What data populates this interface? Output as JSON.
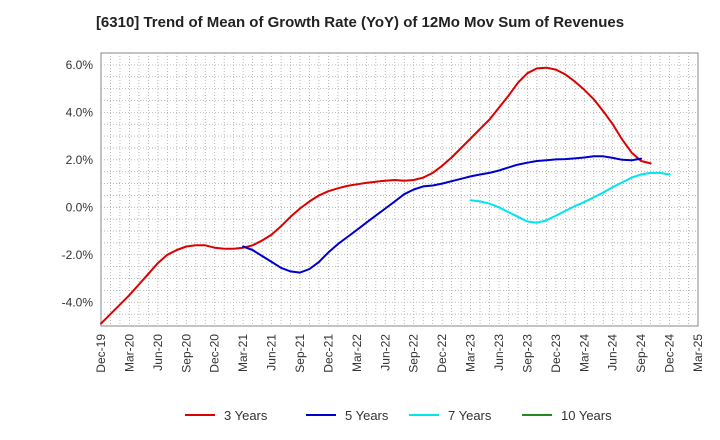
{
  "chart_data": {
    "type": "line",
    "title": "[6310]  Trend of Mean of Growth Rate (YoY) of 12Mo Mov Sum of Revenues",
    "xlabel": "",
    "ylabel": "",
    "x_ticks": [
      "Dec-19",
      "Mar-20",
      "Jun-20",
      "Sep-20",
      "Dec-20",
      "Mar-21",
      "Jun-21",
      "Sep-21",
      "Dec-21",
      "Mar-22",
      "Jun-22",
      "Sep-22",
      "Dec-22",
      "Mar-23",
      "Jun-23",
      "Sep-23",
      "Dec-23",
      "Mar-24",
      "Jun-24",
      "Sep-24",
      "Dec-24",
      "Mar-25"
    ],
    "y_ticks": [
      6.0,
      4.0,
      2.0,
      0.0,
      -2.0,
      -4.0
    ],
    "y_tick_labels": [
      "6.0%",
      "4.0%",
      "2.0%",
      "0.0%",
      "-2.0%",
      "-4.0%"
    ],
    "ylim": [
      -5.0,
      6.5
    ],
    "x_index_range": [
      0,
      63
    ],
    "grid": true,
    "series": [
      {
        "name": "3 Years",
        "color": "#dd0000",
        "start_index": 0,
        "values": [
          -4.9,
          -4.5,
          -4.1,
          -3.7,
          -3.25,
          -2.8,
          -2.35,
          -2.0,
          -1.8,
          -1.65,
          -1.6,
          -1.6,
          -1.7,
          -1.75,
          -1.75,
          -1.7,
          -1.6,
          -1.4,
          -1.15,
          -0.8,
          -0.4,
          -0.05,
          0.25,
          0.5,
          0.68,
          0.8,
          0.9,
          0.97,
          1.03,
          1.08,
          1.12,
          1.15,
          1.12,
          1.15,
          1.25,
          1.45,
          1.75,
          2.1,
          2.5,
          2.9,
          3.3,
          3.7,
          4.2,
          4.7,
          5.25,
          5.65,
          5.85,
          5.88,
          5.8,
          5.6,
          5.3,
          4.95,
          4.55,
          4.05,
          3.5,
          2.85,
          2.3,
          1.95,
          1.85
        ]
      },
      {
        "name": "5 Years",
        "color": "#0000cc",
        "start_index": 15,
        "values": [
          -1.65,
          -1.8,
          -2.05,
          -2.3,
          -2.55,
          -2.7,
          -2.75,
          -2.6,
          -2.3,
          -1.9,
          -1.55,
          -1.25,
          -0.95,
          -0.65,
          -0.35,
          -0.05,
          0.25,
          0.55,
          0.75,
          0.88,
          0.92,
          1.0,
          1.1,
          1.2,
          1.3,
          1.38,
          1.45,
          1.55,
          1.68,
          1.8,
          1.88,
          1.95,
          1.98,
          2.02,
          2.03,
          2.06,
          2.1,
          2.15,
          2.15,
          2.08,
          2.0,
          1.98,
          2.05
        ]
      },
      {
        "name": "7 Years",
        "color": "#00e5ee",
        "start_index": 39,
        "values": [
          0.3,
          0.25,
          0.15,
          0.0,
          -0.2,
          -0.4,
          -0.6,
          -0.65,
          -0.55,
          -0.35,
          -0.15,
          0.05,
          0.22,
          0.42,
          0.62,
          0.85,
          1.05,
          1.25,
          1.38,
          1.45,
          1.45,
          1.38
        ]
      },
      {
        "name": "10 Years",
        "color": "#228b22",
        "start_index": 0,
        "values": []
      }
    ]
  }
}
